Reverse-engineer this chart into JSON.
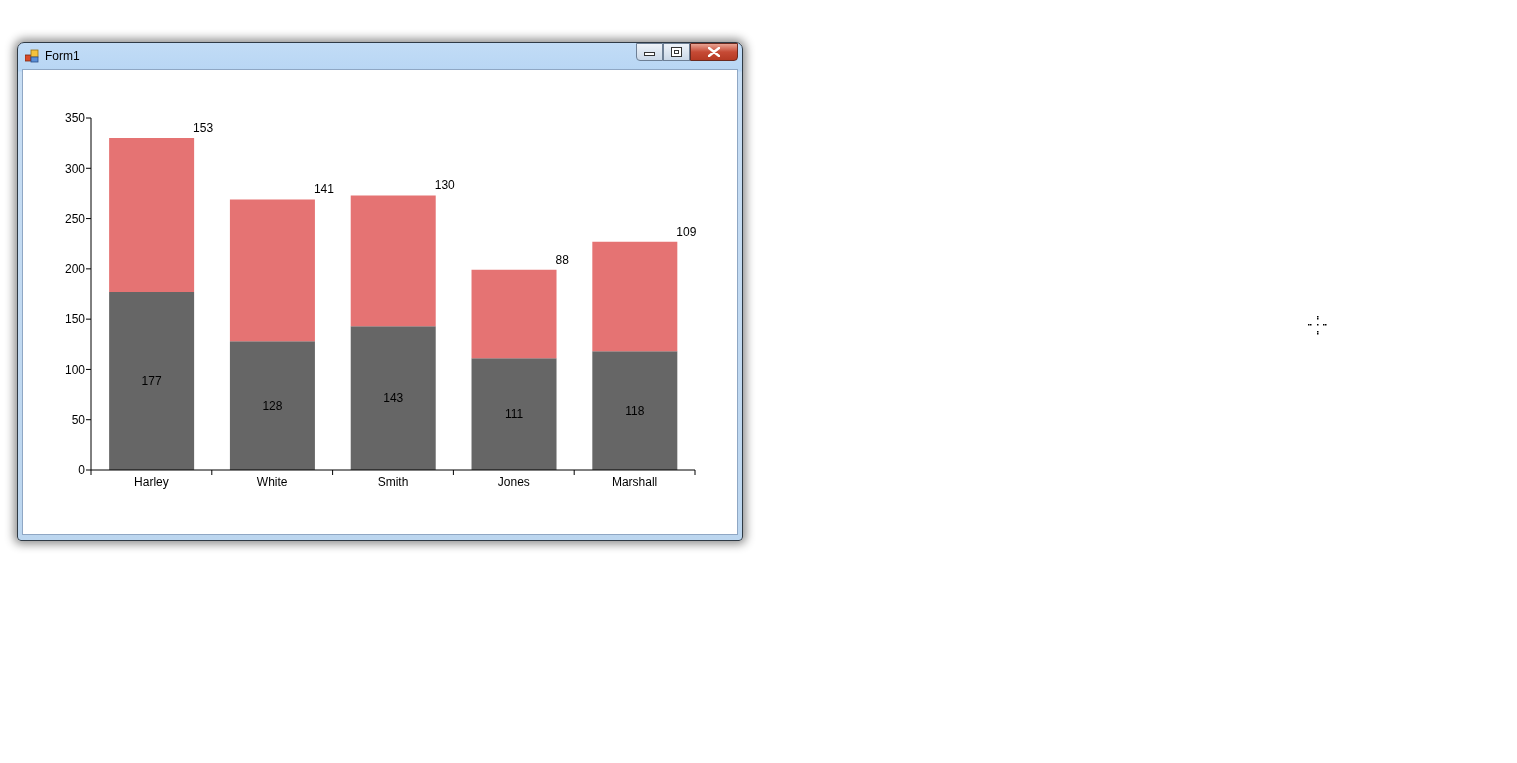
{
  "chart_data": {
    "type": "bar",
    "stacked": true,
    "categories": [
      "Harley",
      "White",
      "Smith",
      "Jones",
      "Marshall"
    ],
    "series": [
      {
        "color": "#666666",
        "values": [
          177,
          128,
          143,
          111,
          118
        ]
      },
      {
        "color": "#e57373",
        "values": [
          153,
          141,
          130,
          88,
          109
        ]
      }
    ],
    "ylim": [
      0,
      350
    ],
    "yticks": [
      0,
      50,
      100,
      150,
      200,
      250,
      300,
      350
    ],
    "data_labels": true,
    "annotations": [
      "Form1"
    ]
  }
}
